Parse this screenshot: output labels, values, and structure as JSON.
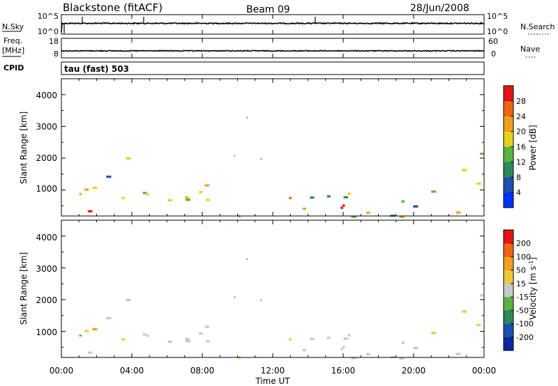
{
  "header": {
    "station": "Blackstone (fitACF)",
    "beam": "Beam 09",
    "date": "28/Jun/2008"
  },
  "top_panels": {
    "nsky_label": "N.Sky",
    "nsky_ticks": [
      "10^5",
      "10^0"
    ],
    "nsearch_label": "N.Search",
    "nsearch_ticks": [
      "10^5",
      "10^0"
    ],
    "freq_label": "Freq.",
    "freq_unit": "[MHz]",
    "freq_ticks": [
      "18",
      "8"
    ],
    "nave_label": "Nave",
    "nave_ticks": [
      "60",
      "0"
    ],
    "cpid_label": "CPID",
    "cpid_value": "tau (fast) 503"
  },
  "chart_data": [
    {
      "type": "heatmap",
      "name": "power",
      "ylabel": "Slant Range [km]",
      "ylim": [
        180,
        4500
      ],
      "y_ticks": [
        "4000",
        "3000",
        "2000",
        "1000"
      ],
      "xlim": [
        0,
        24
      ],
      "x_ticks": [
        "00:00",
        "04:00",
        "08:00",
        "12:00",
        "16:00",
        "20:00",
        "00:00"
      ],
      "colorbar": {
        "label": "Power [dB]",
        "ticks": [
          "28",
          "24",
          "20",
          "16",
          "12",
          "8",
          "4"
        ],
        "colors": [
          "#0030ff",
          "#1e50b4",
          "#2e8a5a",
          "#5ab440",
          "#e6d21e",
          "#f0a01e",
          "#f06414",
          "#e61414"
        ]
      }
    },
    {
      "type": "heatmap",
      "name": "velocity",
      "ylabel": "Slant Range [km]",
      "ylim": [
        180,
        4500
      ],
      "y_ticks": [
        "4000",
        "3000",
        "2000",
        "1000"
      ],
      "xlim": [
        0,
        24
      ],
      "x_ticks": [
        "00:00",
        "04:00",
        "08:00",
        "12:00",
        "16:00",
        "20:00",
        "00:00"
      ],
      "xlabel": "Time UT",
      "colorbar": {
        "label": "Velocity [m s",
        "label_sup": "-1",
        "label_end": "]",
        "ticks": [
          "200",
          "100",
          "50",
          "15",
          "-15",
          "-50",
          "-100",
          "-200"
        ],
        "colors": [
          "#e61414",
          "#f06414",
          "#f0a01e",
          "#f0c83c",
          "#c8c8c8",
          "#5ab440",
          "#2e8a5a",
          "#1e50b4",
          "#0a28a0"
        ]
      }
    }
  ]
}
